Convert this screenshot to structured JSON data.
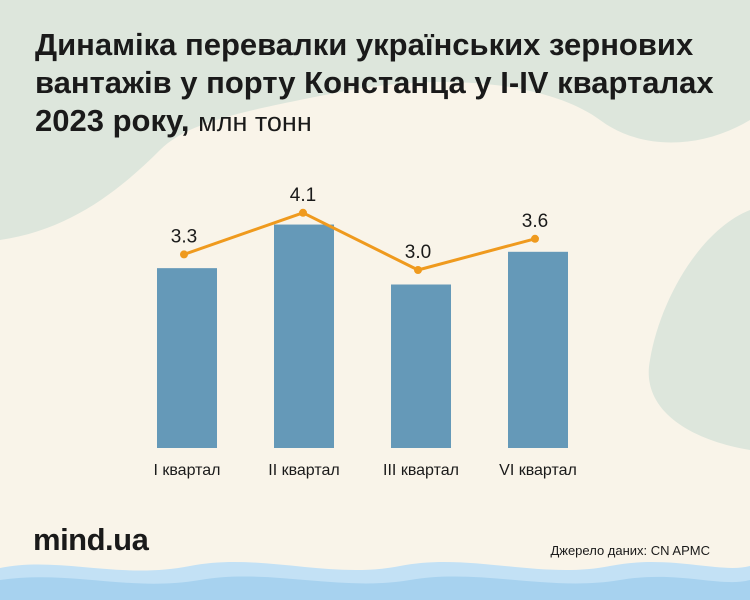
{
  "title": "Динаміка перевалки українських зернових вантажів у порту Констанца у I-IV кварталах 2023 року,",
  "unit": "млн тонн",
  "logo": "mind.ua",
  "source": "Джерело даних: CN APMC",
  "colors": {
    "bar": "#6599b8",
    "line": "#ef9a1e",
    "background": "#f9f4e9",
    "blob": "#dde6dc",
    "wave": "#a7d2ef"
  },
  "chart_data": {
    "type": "bar",
    "categories": [
      "I квартал",
      "II квартал",
      "III квартал",
      "VI квартал"
    ],
    "values": [
      3.3,
      4.1,
      3.0,
      3.6
    ],
    "labels": [
      "3.3",
      "4.1",
      "3.0",
      "3.6"
    ]
  }
}
